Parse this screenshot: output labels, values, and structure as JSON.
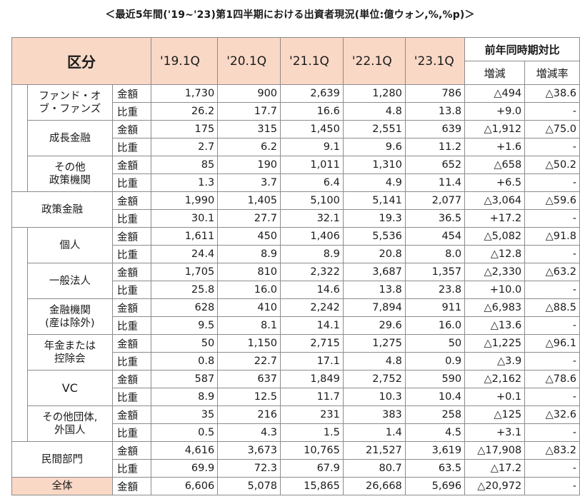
{
  "title": "＜最近5年間('19~'23)第1四半期における出資者現況(単位:億ウォン,%,%p)＞",
  "header": {
    "category": "区分",
    "years": [
      "'19.1Q",
      "'20.1Q",
      "'21.1Q",
      "'22.1Q",
      "'23.1Q"
    ],
    "compare": "前年同時期対比",
    "change": "増減",
    "change_rate": "増減率"
  },
  "groups": [
    {
      "rows": [
        {
          "cat": [
            "ファンド・オ",
            "ブ・ファンズ"
          ],
          "amount": [
            "1,730",
            "900",
            "2,639",
            "1,280",
            "786",
            "△494",
            "△38.6"
          ],
          "share": [
            "26.2",
            "17.7",
            "16.6",
            "4.8",
            "13.8",
            "+9.0",
            "-"
          ]
        },
        {
          "cat": [
            "成長金融"
          ],
          "amount": [
            "175",
            "315",
            "1,450",
            "2,551",
            "639",
            "△1,912",
            "△75.0"
          ],
          "share": [
            "2.7",
            "6.2",
            "9.1",
            "9.6",
            "11.2",
            "+1.6",
            "-"
          ]
        },
        {
          "cat": [
            "その他",
            "政策機関"
          ],
          "amount": [
            "85",
            "190",
            "1,011",
            "1,310",
            "652",
            "△658",
            "△50.2"
          ],
          "share": [
            "1.3",
            "3.7",
            "6.4",
            "4.9",
            "11.4",
            "+6.5",
            "-"
          ]
        }
      ],
      "subtotal": {
        "cat": "政策金融",
        "amount": [
          "1,990",
          "1,405",
          "5,100",
          "5,141",
          "2,077",
          "△3,064",
          "△59.6"
        ],
        "share": [
          "30.1",
          "27.7",
          "32.1",
          "19.3",
          "36.5",
          "+17.2",
          "-"
        ]
      }
    },
    {
      "rows": [
        {
          "cat": [
            "個人"
          ],
          "amount": [
            "1,611",
            "450",
            "1,406",
            "5,536",
            "454",
            "△5,082",
            "△91.8"
          ],
          "share": [
            "24.4",
            "8.9",
            "8.9",
            "20.8",
            "8.0",
            "△12.8",
            "-"
          ]
        },
        {
          "cat": [
            "一般法人"
          ],
          "amount": [
            "1,705",
            "810",
            "2,322",
            "3,687",
            "1,357",
            "△2,330",
            "△63.2"
          ],
          "share": [
            "25.8",
            "16.0",
            "14.6",
            "13.8",
            "23.8",
            "+10.0",
            "-"
          ]
        },
        {
          "cat": [
            "金融機関",
            "(産は除外)"
          ],
          "amount": [
            "628",
            "410",
            "2,242",
            "7,894",
            "911",
            "△6,983",
            "△88.5"
          ],
          "share": [
            "9.5",
            "8.1",
            "14.1",
            "29.6",
            "16.0",
            "△13.6",
            "-"
          ]
        },
        {
          "cat": [
            "年金または",
            "控除会"
          ],
          "amount": [
            "50",
            "1,150",
            "2,715",
            "1,275",
            "50",
            "△1,225",
            "△96.1"
          ],
          "share": [
            "0.8",
            "22.7",
            "17.1",
            "4.8",
            "0.9",
            "△3.9",
            "-"
          ]
        },
        {
          "cat": [
            "VC"
          ],
          "amount": [
            "587",
            "637",
            "1,849",
            "2,752",
            "590",
            "△2,162",
            "△78.6"
          ],
          "share": [
            "8.9",
            "12.5",
            "11.7",
            "10.3",
            "10.4",
            "+0.1",
            "-"
          ]
        },
        {
          "cat": [
            "その他団体,",
            "外国人"
          ],
          "amount": [
            "35",
            "216",
            "231",
            "383",
            "258",
            "△125",
            "△32.6"
          ],
          "share": [
            "0.5",
            "4.3",
            "1.5",
            "1.4",
            "4.5",
            "+3.1",
            "-"
          ]
        }
      ],
      "subtotal": {
        "cat": "民間部門",
        "amount": [
          "4,616",
          "3,673",
          "10,765",
          "21,527",
          "3,619",
          "△17,908",
          "△83.2"
        ],
        "share": [
          "69.9",
          "72.3",
          "67.9",
          "80.7",
          "63.5",
          "△17.2",
          "-"
        ]
      }
    }
  ],
  "metrics": {
    "amount": "金額",
    "share": "比重"
  },
  "total": {
    "cat": "全体",
    "amount": [
      "6,606",
      "5,078",
      "15,865",
      "26,668",
      "5,696",
      "△20,972",
      "-"
    ]
  }
}
